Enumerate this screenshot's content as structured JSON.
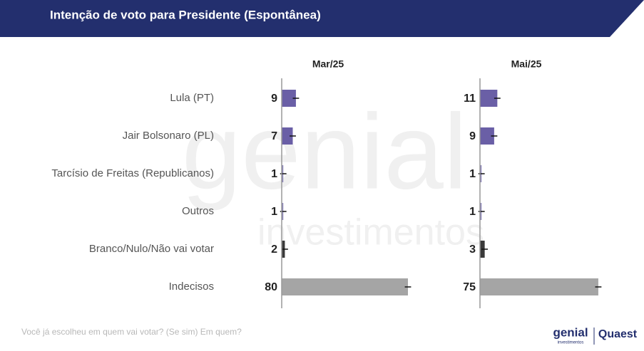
{
  "chart_data": {
    "type": "bar",
    "title": "Intenção de voto para Presidente (Espontânea)",
    "categories": [
      "Lula (PT)",
      "Jair Bolsonaro (PL)",
      "Tarcísio de Freitas (Republicanos)",
      "Outros",
      "Branco/Nulo/Não vai votar",
      "Indecisos"
    ],
    "colors": [
      "#6a5fa6",
      "#6a5fa6",
      "#8a84b8",
      "#8a84b8",
      "#3a3a3a",
      "#a5a5a5"
    ],
    "series": [
      {
        "name": "Mar/25",
        "values": [
          9,
          7,
          1,
          1,
          2,
          80
        ],
        "errors": [
          2,
          2,
          2,
          2,
          2,
          2
        ]
      },
      {
        "name": "Mai/25",
        "values": [
          11,
          9,
          1,
          1,
          3,
          75
        ],
        "errors": [
          2,
          2,
          2,
          2,
          2,
          2
        ]
      }
    ],
    "xlim": [
      0,
      80
    ],
    "footnote": "Você já escolheu em quem vai votar? (Se sim) Em quem?",
    "watermark": [
      "genial",
      "investimentos"
    ],
    "logos": [
      "genial",
      "investimentos",
      "Quaest"
    ]
  }
}
